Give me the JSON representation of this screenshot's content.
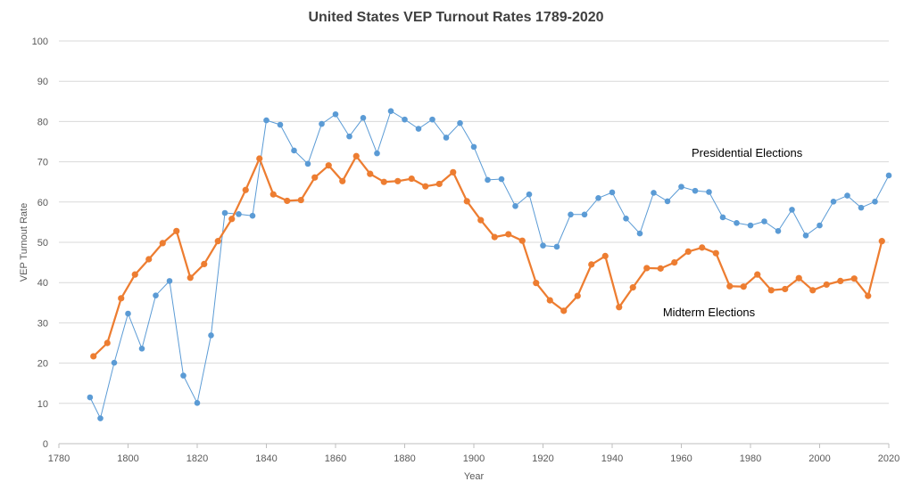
{
  "chart_data": {
    "type": "line",
    "title": "United States VEP Turnout Rates 1789-2020",
    "xlabel": "Year",
    "ylabel": "VEP Turnout Rate",
    "xlim": [
      1780,
      2020
    ],
    "ylim": [
      0,
      100
    ],
    "x_ticks": [
      1780,
      1800,
      1820,
      1840,
      1860,
      1880,
      1900,
      1920,
      1940,
      1960,
      1980,
      2000,
      2020
    ],
    "y_ticks": [
      0,
      10,
      20,
      30,
      40,
      50,
      60,
      70,
      80,
      90,
      100
    ],
    "grid": true,
    "legend": "none",
    "series": [
      {
        "name": "Presidential Elections",
        "color": "#5b9bd5",
        "x": [
          1789,
          1792,
          1796,
          1800,
          1804,
          1808,
          1812,
          1816,
          1820,
          1824,
          1828,
          1832,
          1836,
          1840,
          1844,
          1848,
          1852,
          1856,
          1860,
          1864,
          1868,
          1872,
          1876,
          1880,
          1884,
          1888,
          1892,
          1896,
          1900,
          1904,
          1908,
          1912,
          1916,
          1920,
          1924,
          1928,
          1932,
          1936,
          1940,
          1944,
          1948,
          1952,
          1956,
          1960,
          1964,
          1968,
          1972,
          1976,
          1980,
          1984,
          1988,
          1992,
          1996,
          2000,
          2004,
          2008,
          2012,
          2016,
          2020
        ],
        "values": [
          11.5,
          6.3,
          20.1,
          32.3,
          23.6,
          36.8,
          40.4,
          16.9,
          10.1,
          26.9,
          57.3,
          57.0,
          56.6,
          80.3,
          79.2,
          72.8,
          69.5,
          79.4,
          81.8,
          76.3,
          80.9,
          72.1,
          82.6,
          80.5,
          78.2,
          80.5,
          76.0,
          79.6,
          73.7,
          65.5,
          65.7,
          59.0,
          61.9,
          49.2,
          48.9,
          56.9,
          56.9,
          61.0,
          62.4,
          55.9,
          52.2,
          62.3,
          60.2,
          63.8,
          62.8,
          62.5,
          56.2,
          54.8,
          54.2,
          55.2,
          52.8,
          58.1,
          51.7,
          54.2,
          60.1,
          61.6,
          58.6,
          60.1,
          66.6
        ]
      },
      {
        "name": "Midterm Elections",
        "color": "#ed7d31",
        "x": [
          1790,
          1794,
          1798,
          1802,
          1806,
          1810,
          1814,
          1818,
          1822,
          1826,
          1830,
          1834,
          1838,
          1842,
          1846,
          1850,
          1854,
          1858,
          1862,
          1866,
          1870,
          1874,
          1878,
          1882,
          1886,
          1890,
          1894,
          1898,
          1902,
          1906,
          1910,
          1914,
          1918,
          1922,
          1926,
          1930,
          1934,
          1938,
          1942,
          1946,
          1950,
          1954,
          1958,
          1962,
          1966,
          1970,
          1974,
          1978,
          1982,
          1986,
          1990,
          1994,
          1998,
          2002,
          2006,
          2010,
          2014,
          2018
        ],
        "values": [
          21.7,
          25.0,
          36.1,
          42.0,
          45.8,
          49.8,
          52.8,
          41.2,
          44.6,
          50.3,
          55.8,
          63.0,
          70.8,
          61.9,
          60.3,
          60.5,
          66.1,
          69.1,
          65.2,
          71.4,
          67.0,
          65.0,
          65.2,
          65.8,
          63.9,
          64.5,
          67.4,
          60.2,
          55.5,
          51.3,
          52.0,
          50.4,
          39.9,
          35.6,
          33.0,
          36.7,
          44.5,
          46.6,
          33.9,
          38.8,
          43.6,
          43.5,
          45.0,
          47.7,
          48.7,
          47.3,
          39.1,
          39.0,
          42.0,
          38.1,
          38.4,
          41.1,
          38.1,
          39.5,
          40.4,
          41.0,
          36.7,
          50.3
        ]
      }
    ],
    "annotations": [
      {
        "text": "Presidential Elections",
        "x": 1979,
        "y": 71.2
      },
      {
        "text": "Midterm Elections",
        "x": 1968,
        "y": 31.6
      }
    ]
  }
}
